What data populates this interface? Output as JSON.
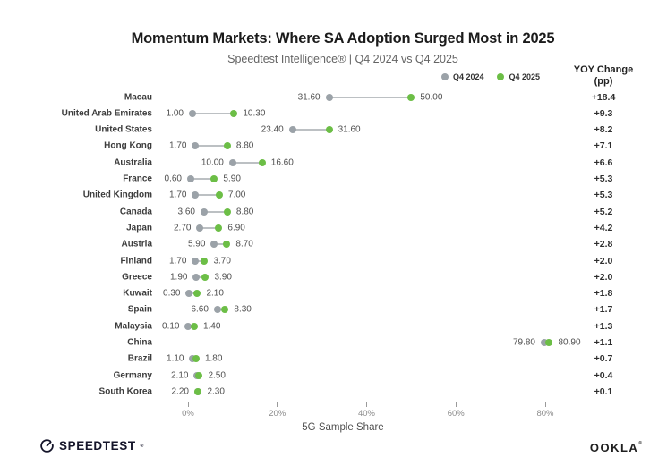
{
  "header": {
    "title": "Momentum Markets: Where SA Adoption Surged Most in 2025",
    "subtitle": "Speedtest Intelligence® | Q4 2024 vs Q4 2025"
  },
  "yoy_header": {
    "line1": "YOY Change",
    "line2": "(pp)"
  },
  "chart_data": {
    "type": "dumbbell",
    "title": "Momentum Markets: Where SA Adoption Surged Most in 2025",
    "subtitle": "Speedtest Intelligence® | Q4 2024 vs Q4 2025",
    "xlabel": "5G Sample Share",
    "xlim": [
      0,
      80
    ],
    "x_ticks": [
      {
        "value": 0,
        "label": "0%"
      },
      {
        "value": 20,
        "label": "20%"
      },
      {
        "value": 40,
        "label": "40%"
      },
      {
        "value": 60,
        "label": "60%"
      },
      {
        "value": 80,
        "label": "80%"
      }
    ],
    "legend_position": "top-right",
    "grid": false,
    "categories": [
      "Macau",
      "United Arab Emirates",
      "United States",
      "Hong Kong",
      "Australia",
      "France",
      "United Kingdom",
      "Canada",
      "Japan",
      "Austria",
      "Finland",
      "Greece",
      "Kuwait",
      "Spain",
      "Malaysia",
      "China",
      "Brazil",
      "Germany",
      "South Korea"
    ],
    "series": [
      {
        "name": "Q4 2024",
        "color": "#9BA2A8",
        "values": [
          31.6,
          1.0,
          23.4,
          1.7,
          10.0,
          0.6,
          1.7,
          3.6,
          2.7,
          5.9,
          1.7,
          1.9,
          0.3,
          6.6,
          0.1,
          79.8,
          1.1,
          2.1,
          2.2
        ]
      },
      {
        "name": "Q4 2025",
        "color": "#6CBE46",
        "values": [
          50.0,
          10.3,
          31.6,
          8.8,
          16.6,
          5.9,
          7.0,
          8.8,
          6.9,
          8.7,
          3.7,
          3.9,
          2.1,
          8.3,
          1.4,
          80.9,
          1.8,
          2.5,
          2.3
        ]
      }
    ],
    "yoy_change": [
      "+18.4",
      "+9.3",
      "+8.2",
      "+7.1",
      "+6.6",
      "+5.3",
      "+5.3",
      "+5.2",
      "+4.2",
      "+2.8",
      "+2.0",
      "+2.0",
      "+1.8",
      "+1.7",
      "+1.3",
      "+1.1",
      "+0.7",
      "+0.4",
      "+0.1"
    ],
    "colors": {
      "connector_line": "#BCC0C3",
      "q4_2024_dot": "#9BA2A8",
      "q4_2025_dot": "#6CBE46"
    }
  },
  "footer": {
    "speedtest_label": "SPEEDTEST",
    "ookla_label": "OOKLA",
    "reg_mark": "®"
  }
}
